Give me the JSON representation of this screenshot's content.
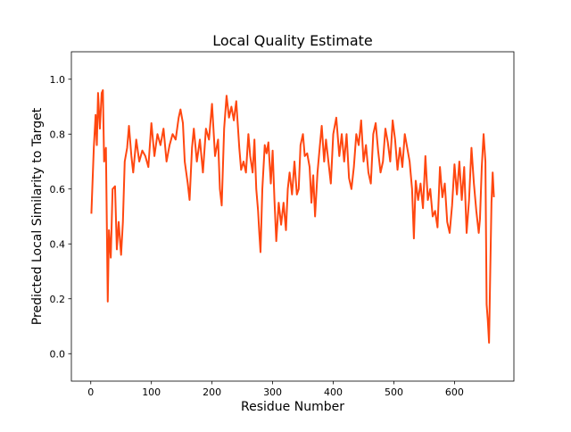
{
  "chart_data": {
    "type": "line",
    "title": "Local Quality Estimate",
    "x_label": "Residue Number",
    "y_label": "Predicted Local Similarity to Target",
    "color": "#ff4710",
    "xlim": [
      -32,
      698
    ],
    "ylim": [
      -0.1,
      1.1
    ],
    "xticks": [
      0,
      100,
      200,
      300,
      400,
      500,
      600
    ],
    "yticks": [
      {
        "value": 0,
        "label": "0.0"
      },
      0.2,
      0.4,
      0.6,
      0.8,
      {
        "value": 1,
        "label": "1.0"
      }
    ],
    "grid": false,
    "x": [
      1,
      5,
      8,
      10,
      12,
      15,
      18,
      20,
      22,
      25,
      28,
      30,
      33,
      36,
      40,
      43,
      46,
      50,
      53,
      56,
      60,
      63,
      67,
      70,
      75,
      80,
      85,
      90,
      95,
      100,
      105,
      110,
      115,
      120,
      125,
      130,
      135,
      140,
      145,
      148,
      152,
      155,
      160,
      163,
      167,
      170,
      175,
      180,
      185,
      190,
      195,
      200,
      205,
      210,
      213,
      216,
      220,
      224,
      228,
      232,
      236,
      240,
      245,
      248,
      252,
      256,
      260,
      263,
      267,
      270,
      273,
      276,
      278,
      280,
      283,
      287,
      290,
      293,
      297,
      300,
      303,
      306,
      310,
      314,
      318,
      322,
      325,
      328,
      332,
      336,
      340,
      343,
      346,
      350,
      353,
      357,
      361,
      364,
      367,
      370,
      374,
      378,
      381,
      385,
      388,
      392,
      396,
      400,
      405,
      410,
      414,
      418,
      422,
      426,
      430,
      434,
      438,
      442,
      446,
      450,
      454,
      458,
      462,
      466,
      470,
      474,
      478,
      482,
      486,
      490,
      494,
      498,
      502,
      506,
      510,
      514,
      518,
      522,
      526,
      530,
      533,
      536,
      540,
      544,
      548,
      552,
      556,
      560,
      564,
      568,
      572,
      576,
      580,
      584,
      588,
      592,
      596,
      600,
      604,
      608,
      612,
      616,
      620,
      624,
      628,
      632,
      636,
      640,
      642,
      645,
      648,
      651,
      653,
      655,
      657,
      659,
      661,
      663,
      665
    ],
    "values": [
      0.51,
      0.75,
      0.87,
      0.76,
      0.95,
      0.82,
      0.95,
      0.96,
      0.7,
      0.75,
      0.19,
      0.45,
      0.35,
      0.6,
      0.61,
      0.38,
      0.48,
      0.36,
      0.48,
      0.7,
      0.75,
      0.83,
      0.72,
      0.66,
      0.78,
      0.7,
      0.74,
      0.72,
      0.68,
      0.84,
      0.72,
      0.8,
      0.76,
      0.82,
      0.7,
      0.76,
      0.8,
      0.78,
      0.86,
      0.89,
      0.84,
      0.7,
      0.62,
      0.56,
      0.75,
      0.82,
      0.7,
      0.78,
      0.66,
      0.82,
      0.78,
      0.91,
      0.72,
      0.78,
      0.6,
      0.54,
      0.82,
      0.94,
      0.86,
      0.9,
      0.85,
      0.92,
      0.75,
      0.67,
      0.7,
      0.66,
      0.8,
      0.72,
      0.66,
      0.78,
      0.6,
      0.52,
      0.44,
      0.37,
      0.6,
      0.76,
      0.73,
      0.77,
      0.62,
      0.74,
      0.56,
      0.41,
      0.55,
      0.47,
      0.55,
      0.45,
      0.6,
      0.66,
      0.58,
      0.7,
      0.58,
      0.6,
      0.76,
      0.8,
      0.72,
      0.73,
      0.68,
      0.55,
      0.65,
      0.5,
      0.66,
      0.76,
      0.83,
      0.7,
      0.78,
      0.7,
      0.62,
      0.8,
      0.86,
      0.72,
      0.8,
      0.7,
      0.8,
      0.64,
      0.6,
      0.68,
      0.8,
      0.76,
      0.85,
      0.7,
      0.76,
      0.66,
      0.62,
      0.8,
      0.84,
      0.74,
      0.66,
      0.7,
      0.82,
      0.77,
      0.7,
      0.85,
      0.78,
      0.67,
      0.75,
      0.68,
      0.8,
      0.75,
      0.7,
      0.6,
      0.42,
      0.63,
      0.56,
      0.62,
      0.53,
      0.72,
      0.56,
      0.6,
      0.5,
      0.52,
      0.46,
      0.68,
      0.57,
      0.62,
      0.48,
      0.44,
      0.54,
      0.69,
      0.58,
      0.7,
      0.56,
      0.68,
      0.44,
      0.56,
      0.75,
      0.62,
      0.52,
      0.44,
      0.49,
      0.68,
      0.8,
      0.7,
      0.18,
      0.12,
      0.04,
      0.3,
      0.55,
      0.66,
      0.57
    ]
  }
}
